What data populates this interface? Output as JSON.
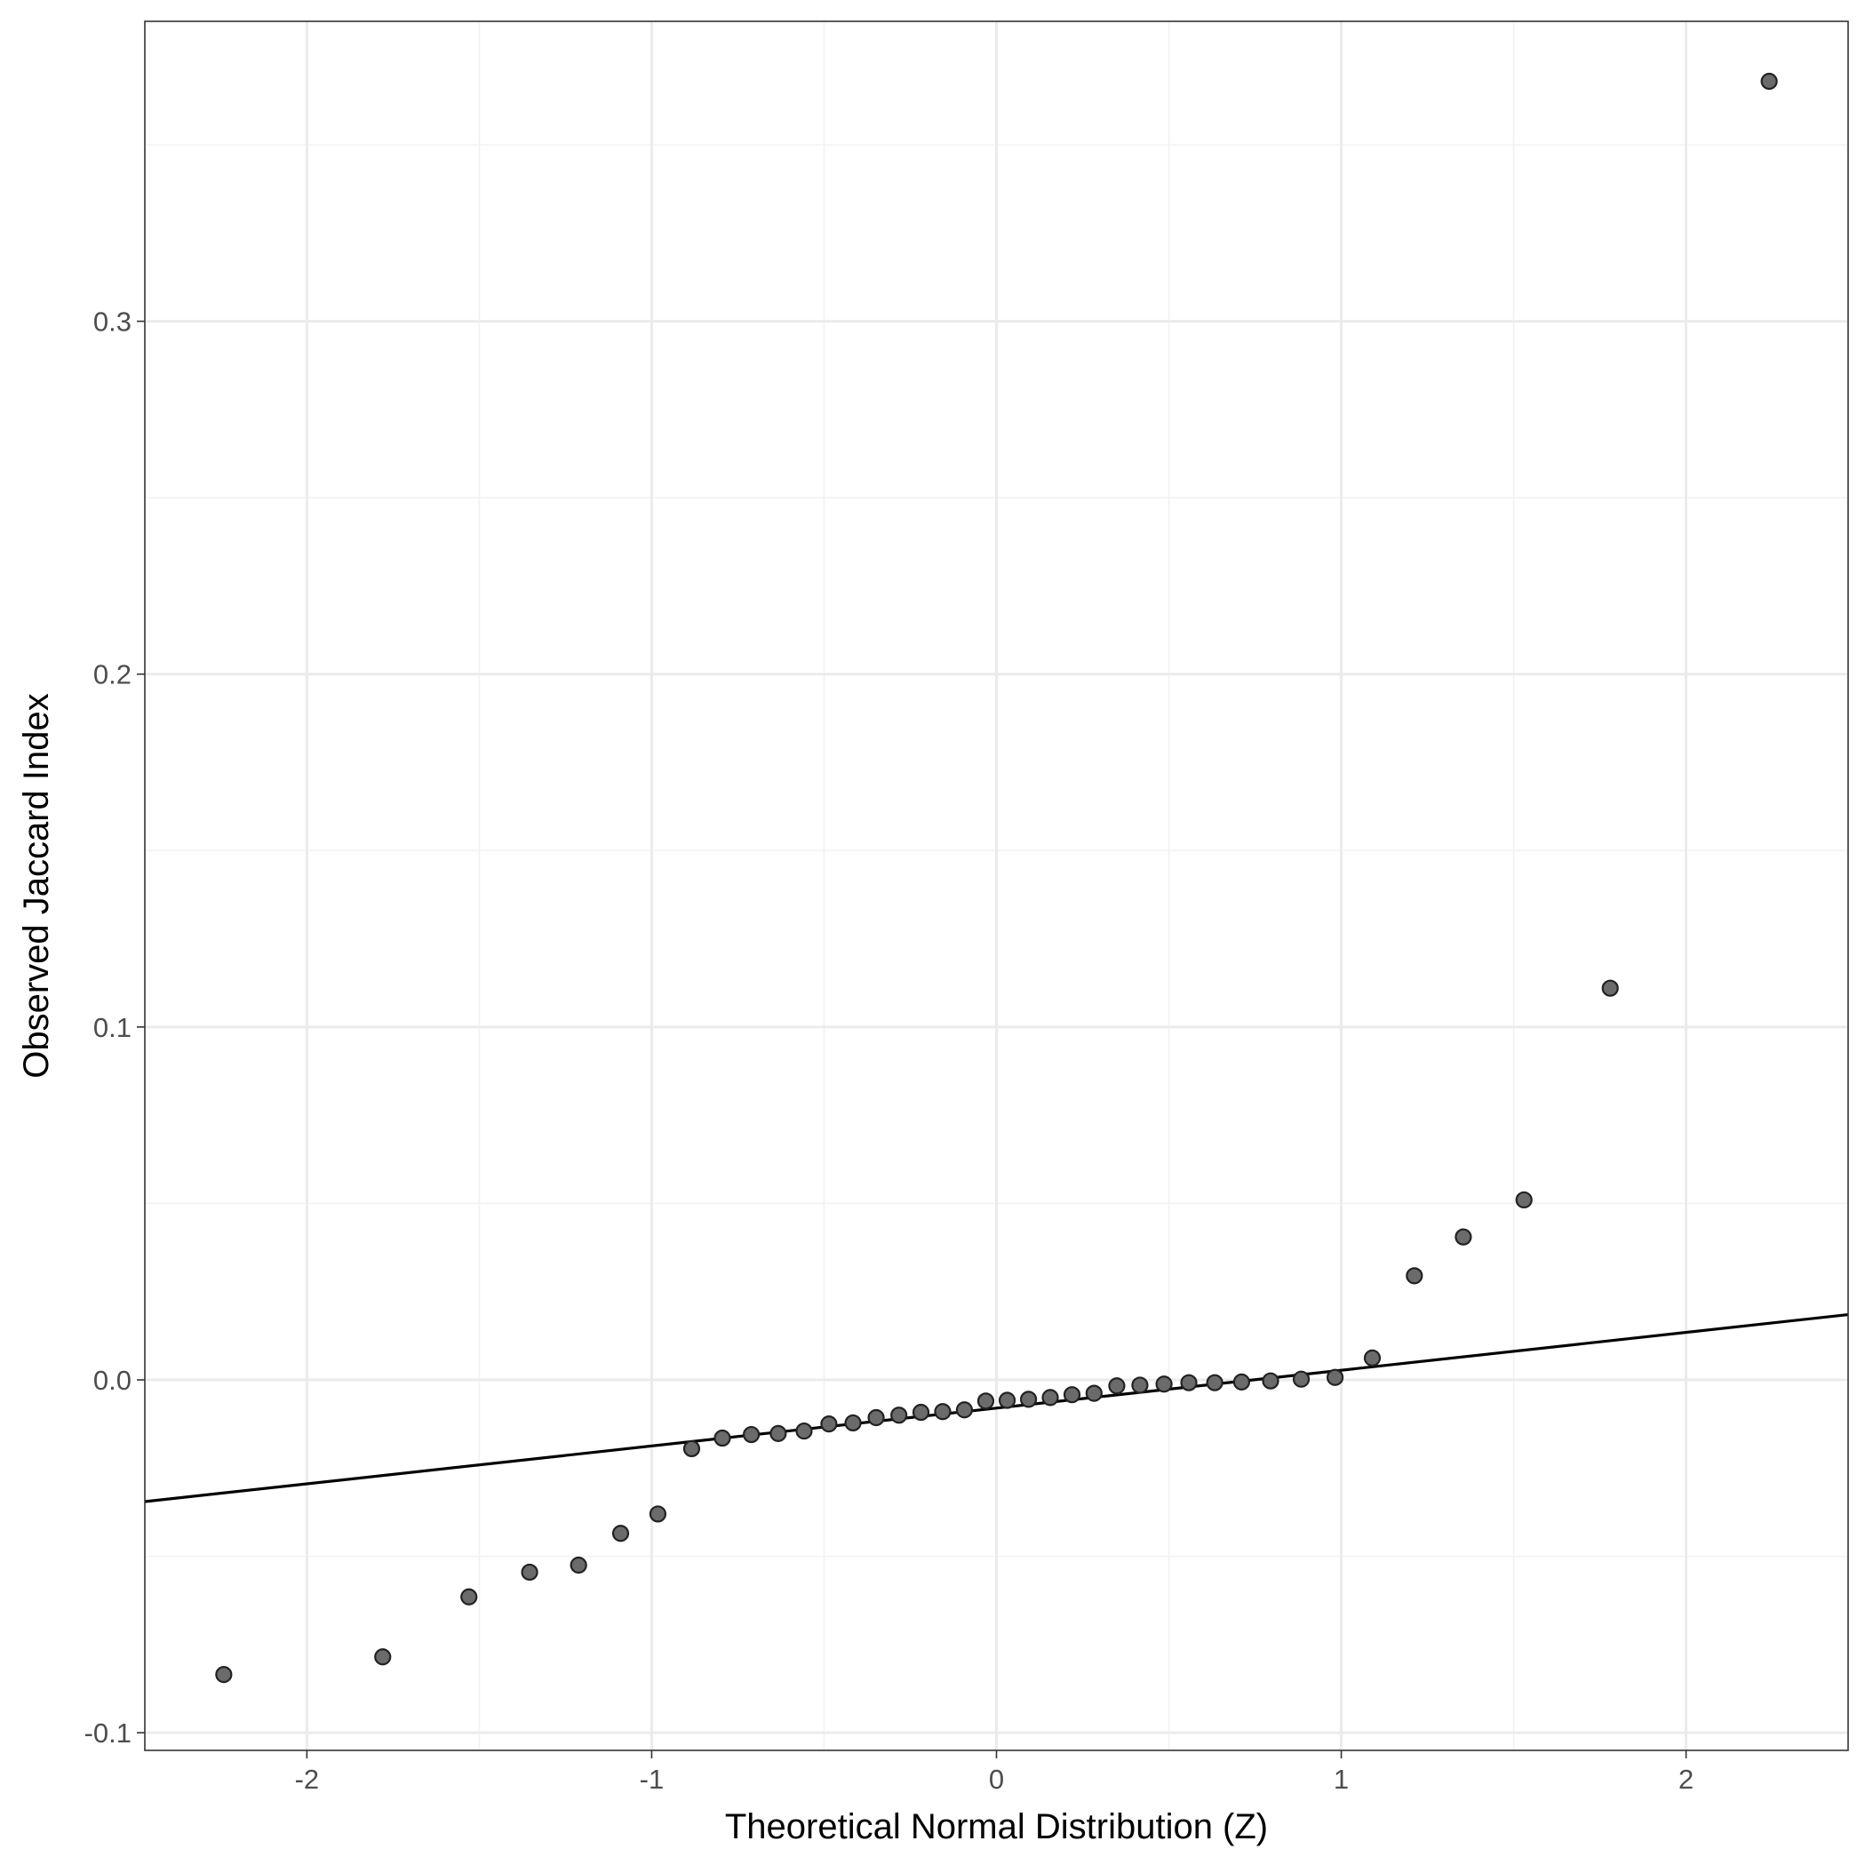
{
  "chart_data": {
    "type": "scatter",
    "title": "",
    "xlabel": "Theoretical Normal Distribution (Z)",
    "ylabel": "Observed Jaccard Index",
    "xlim": [
      -2.47,
      2.47
    ],
    "ylim": [
      -0.105,
      0.385
    ],
    "x_ticks": [
      -2,
      -1,
      0,
      1,
      2
    ],
    "x_tick_labels": [
      "-2",
      "-1",
      "0",
      "1",
      "2"
    ],
    "y_ticks": [
      -0.1,
      0.0,
      0.1,
      0.2,
      0.3
    ],
    "y_tick_labels": [
      "-0.1",
      "0.0",
      "0.1",
      "0.2",
      "0.3"
    ],
    "grid": true,
    "legend": "none",
    "reference_line": {
      "x": [
        -2.47,
        2.47
      ],
      "y": [
        -0.0345,
        0.0185
      ],
      "color": "#000000"
    },
    "point_color": "#6b6b6b",
    "series": [
      {
        "x": [
          -2.241,
          -1.78,
          -1.53,
          -1.354,
          -1.212,
          -1.09,
          -0.982,
          -0.884,
          -0.795,
          -0.711,
          -0.633,
          -0.558,
          -0.486,
          -0.416,
          -0.349,
          -0.283,
          -0.219,
          -0.156,
          -0.093,
          -0.031,
          0.031,
          0.093,
          0.156,
          0.219,
          0.283,
          0.349,
          0.416,
          0.486,
          0.558,
          0.633,
          0.711,
          0.795,
          0.884,
          0.982,
          1.09,
          1.212,
          1.354,
          1.53,
          1.78,
          2.241
        ],
        "y": [
          -0.0835,
          -0.0785,
          -0.0615,
          -0.0545,
          -0.0525,
          -0.0435,
          -0.038,
          -0.0195,
          -0.0165,
          -0.0155,
          -0.0152,
          -0.0145,
          -0.0125,
          -0.0122,
          -0.0107,
          -0.01,
          -0.0092,
          -0.009,
          -0.0085,
          -0.006,
          -0.0058,
          -0.0055,
          -0.005,
          -0.0042,
          -0.0038,
          -0.0017,
          -0.0015,
          -0.0012,
          -0.0008,
          -0.0008,
          -0.0006,
          -0.0003,
          0.0002,
          0.0007,
          0.0062,
          0.0295,
          0.0405,
          0.051,
          0.111,
          0.368
        ]
      }
    ]
  }
}
